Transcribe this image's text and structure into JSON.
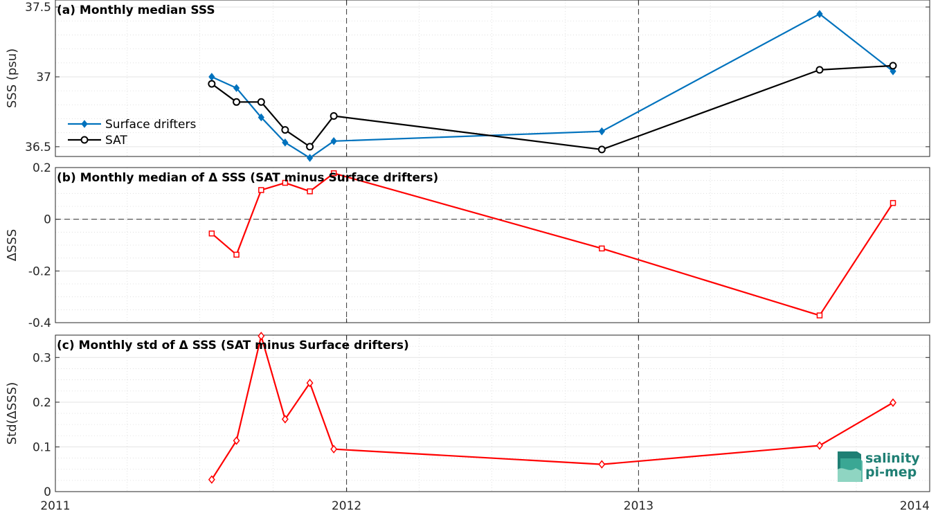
{
  "chart_data": [
    {
      "type": "line",
      "title": "(a) Monthly median SSS",
      "ylabel": "SSS (psu)",
      "xlim": [
        "2011-01-01",
        "2014-01-01"
      ],
      "ylim": [
        36.43,
        37.55
      ],
      "xticks": [
        "2011",
        "2012",
        "2013",
        "2014"
      ],
      "yticks": [
        36.5,
        37,
        37.5
      ],
      "ytick_labels": [
        "36.5",
        "37",
        "37.5"
      ],
      "legend": "middle-left",
      "grid": true,
      "series": [
        {
          "name": "Surface drifters",
          "color": "#0072bd",
          "marker": "diamond",
          "points": [
            {
              "x": "2011-07-16",
              "y": 37.0
            },
            {
              "x": "2011-08-16",
              "y": 36.92
            },
            {
              "x": "2011-09-16",
              "y": 36.71
            },
            {
              "x": "2011-10-16",
              "y": 36.53
            },
            {
              "x": "2011-11-16",
              "y": 36.42
            },
            {
              "x": "2011-12-16",
              "y": 36.54
            },
            {
              "x": "2012-11-16",
              "y": 36.61
            },
            {
              "x": "2013-08-16",
              "y": 37.45
            },
            {
              "x": "2013-11-16",
              "y": 37.04
            }
          ]
        },
        {
          "name": "SAT",
          "color": "#000000",
          "marker": "circle",
          "points": [
            {
              "x": "2011-07-16",
              "y": 36.95
            },
            {
              "x": "2011-08-16",
              "y": 36.82
            },
            {
              "x": "2011-09-16",
              "y": 36.82
            },
            {
              "x": "2011-10-16",
              "y": 36.62
            },
            {
              "x": "2011-11-16",
              "y": 36.5
            },
            {
              "x": "2011-12-16",
              "y": 36.72
            },
            {
              "x": "2012-11-16",
              "y": 36.48
            },
            {
              "x": "2013-08-16",
              "y": 37.05
            },
            {
              "x": "2013-11-16",
              "y": 37.08
            }
          ]
        }
      ]
    },
    {
      "type": "line",
      "title": "(b) Monthly median of Δ SSS (SAT minus Surface drifters)",
      "ylabel": "ΔSSS",
      "xlim": [
        "2011-01-01",
        "2014-01-01"
      ],
      "ylim": [
        -0.4,
        0.2
      ],
      "xticks": [
        "2011",
        "2012",
        "2013",
        "2014"
      ],
      "yticks": [
        -0.4,
        -0.2,
        0,
        0.2
      ],
      "ytick_labels": [
        "-0.4",
        "-0.2",
        "0",
        "0.2"
      ],
      "grid": true,
      "zero_line": true,
      "series": [
        {
          "color": "#ff0000",
          "marker": "square",
          "points": [
            {
              "x": "2011-07-16",
              "y": -0.055
            },
            {
              "x": "2011-08-16",
              "y": -0.137
            },
            {
              "x": "2011-09-16",
              "y": 0.113
            },
            {
              "x": "2011-10-16",
              "y": 0.141
            },
            {
              "x": "2011-11-16",
              "y": 0.108
            },
            {
              "x": "2011-12-16",
              "y": 0.178
            },
            {
              "x": "2012-11-16",
              "y": -0.113
            },
            {
              "x": "2013-08-16",
              "y": -0.372
            },
            {
              "x": "2013-11-16",
              "y": 0.063
            }
          ]
        }
      ]
    },
    {
      "type": "line",
      "title": "(c) Monthly std of Δ SSS (SAT minus Surface drifters)",
      "ylabel": "Std(ΔSSS)",
      "xlim": [
        "2011-01-01",
        "2014-01-01"
      ],
      "ylim": [
        0,
        0.35
      ],
      "xticks": [
        "2011",
        "2012",
        "2013",
        "2014"
      ],
      "yticks": [
        0,
        0.1,
        0.2,
        0.3
      ],
      "ytick_labels": [
        "0",
        "0.1",
        "0.2",
        "0.3"
      ],
      "grid": true,
      "series": [
        {
          "color": "#ff0000",
          "marker": "diamond",
          "points": [
            {
              "x": "2011-07-16",
              "y": 0.027
            },
            {
              "x": "2011-08-16",
              "y": 0.114
            },
            {
              "x": "2011-09-16",
              "y": 0.348
            },
            {
              "x": "2011-10-16",
              "y": 0.162
            },
            {
              "x": "2011-11-16",
              "y": 0.243
            },
            {
              "x": "2011-12-16",
              "y": 0.095
            },
            {
              "x": "2012-11-16",
              "y": 0.061
            },
            {
              "x": "2013-08-16",
              "y": 0.103
            },
            {
              "x": "2013-11-16",
              "y": 0.199
            }
          ]
        }
      ]
    }
  ],
  "logo": {
    "line1": "salinity",
    "line2": "pi-mep",
    "colors": [
      "#1f7f74",
      "#3fae9a",
      "#8fd5c2"
    ]
  }
}
